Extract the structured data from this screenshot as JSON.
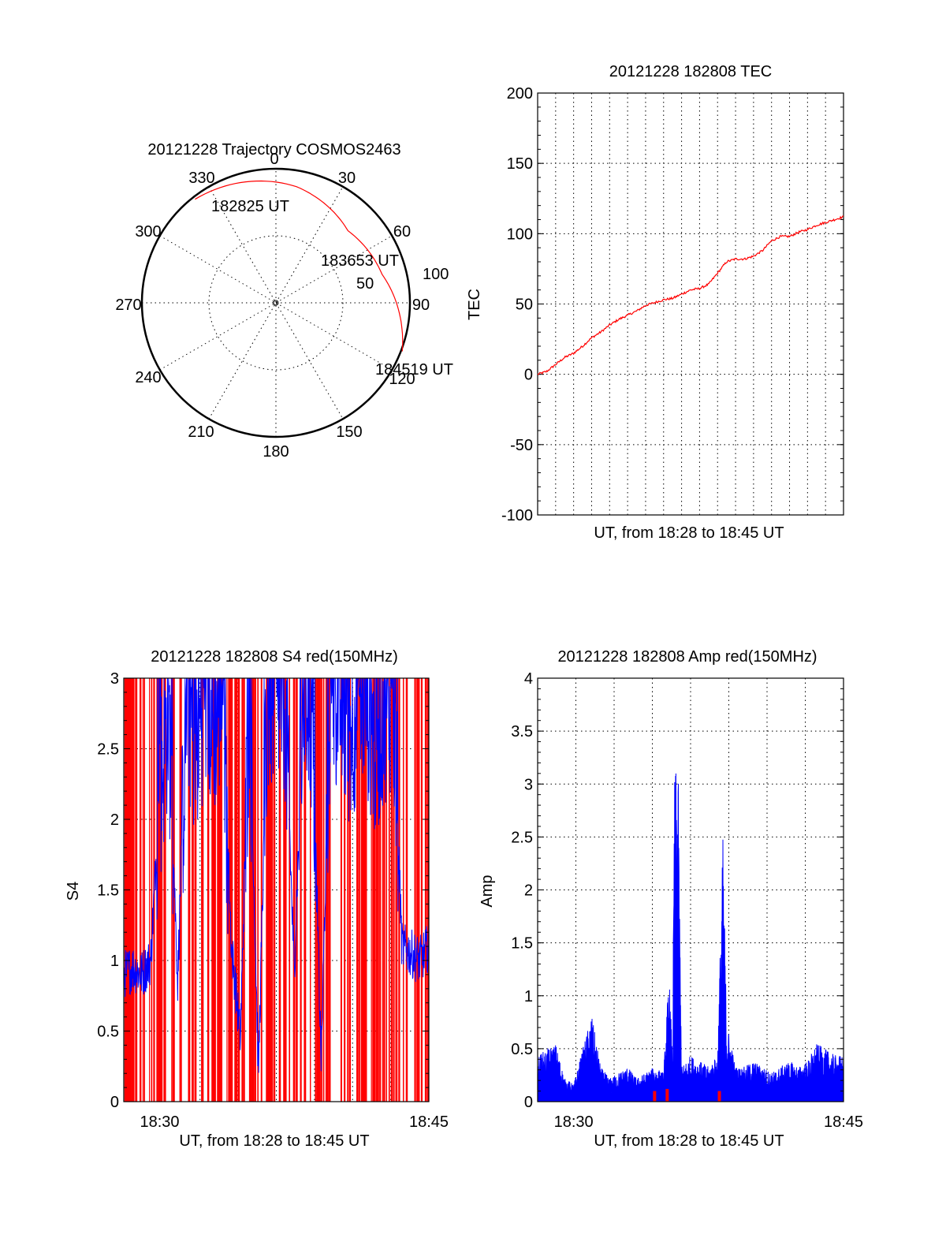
{
  "colors": {
    "red": "#ff0000",
    "blue": "#0000ff",
    "axis": "#000000"
  },
  "chart_data": [
    {
      "type": "polar",
      "title": "20121228 Trajectory COSMOS2463",
      "azimuth_labels": [
        "0",
        "30",
        "60",
        "90",
        "120",
        "150",
        "180",
        "210",
        "240",
        "270",
        "300",
        "330"
      ],
      "elevation_ring_labels": [
        "50",
        "100"
      ],
      "elevation_rings": [
        50,
        100
      ],
      "series": [
        {
          "color": "#ff0000",
          "points": [
            {
              "az": 322,
              "r": 98
            },
            {
              "az": 10,
              "r": 88
            },
            {
              "az": 45,
              "r": 76
            },
            {
              "az": 75,
              "r": 82
            },
            {
              "az": 111,
              "r": 101
            }
          ]
        }
      ],
      "annotations": [
        {
          "text": "182825 UT",
          "az": 322,
          "r": 98
        },
        {
          "text": "183653 UT",
          "az": 59,
          "r": 78
        },
        {
          "text": "184519 UT",
          "az": 111,
          "r": 101
        }
      ]
    },
    {
      "type": "line",
      "title": "20121228 182808 TEC",
      "xlabel": "UT, from 18:28 to 18:45 UT",
      "ylabel": "TEC",
      "xlim": [
        0,
        17
      ],
      "ylim": [
        -100,
        200
      ],
      "yticks": [
        "-100",
        "-50",
        "0",
        "50",
        "100",
        "150",
        "200"
      ],
      "grid": true,
      "series": [
        {
          "color": "#ff0000",
          "x": [
            0,
            0.5,
            1,
            1.5,
            2,
            2.5,
            3,
            3.5,
            4,
            4.5,
            5,
            5.5,
            6,
            6.5,
            7,
            7.5,
            8,
            8.5,
            9,
            9.5,
            10,
            10.5,
            11,
            11.5,
            12,
            12.5,
            13,
            13.5,
            14,
            14.5,
            15,
            15.5,
            16,
            16.5,
            17
          ],
          "y": [
            0,
            2,
            7,
            12,
            15,
            20,
            26,
            30,
            35,
            39,
            42,
            45,
            49,
            51,
            53,
            54,
            57,
            60,
            61,
            64,
            72,
            80,
            82,
            82,
            84,
            88,
            95,
            98,
            98,
            101,
            103,
            106,
            108,
            110,
            112
          ]
        }
      ]
    },
    {
      "type": "line",
      "title": "20121228 182808 S4 red(150MHz)",
      "xlabel": "UT, from 18:28 to 18:45 UT",
      "ylabel": "S4",
      "xlim": [
        0,
        17
      ],
      "ylim": [
        0,
        3
      ],
      "yticks": [
        "0",
        "0.5",
        "1",
        "1.5",
        "2",
        "2.5",
        "3"
      ],
      "xticks": [
        {
          "label": "18:30",
          "x": 2
        },
        {
          "label": "18:45",
          "x": 17
        }
      ],
      "grid": true,
      "series": [
        {
          "color": "#ff0000",
          "note": "dense vertical spikes from 0 to 3 across the interval"
        },
        {
          "color": "#0000ff",
          "x": [
            0,
            0.5,
            1,
            1.5,
            2,
            2.5,
            3,
            3.5,
            4,
            4.5,
            5,
            5.5,
            6,
            6.5,
            7,
            7.5,
            8,
            8.5,
            9,
            9.5,
            10,
            10.5,
            11,
            11.5,
            12,
            12.5,
            13,
            13.5,
            14,
            14.5,
            15,
            15.5,
            16,
            16.5,
            17
          ],
          "y": [
            0.9,
            0.95,
            0.9,
            1.0,
            2.2,
            2.8,
            0.85,
            2.9,
            2.5,
            2.9,
            2.7,
            2.9,
            1.1,
            0.45,
            2.9,
            0.2,
            2.8,
            2.9,
            2.8,
            0.9,
            2.9,
            2.7,
            0.3,
            2.9,
            2.9,
            2.6,
            2.8,
            2.9,
            2.5,
            2.8,
            2.9,
            1.1,
            1.05,
            1.0,
            1.1
          ]
        }
      ]
    },
    {
      "type": "line",
      "title": "20121228 182808 Amp red(150MHz)",
      "xlabel": "UT, from 18:28 to 18:45 UT",
      "ylabel": "Amp",
      "xlim": [
        0,
        17
      ],
      "ylim": [
        0,
        4
      ],
      "yticks": [
        "0",
        "0.5",
        "1",
        "1.5",
        "2",
        "2.5",
        "3",
        "3.5",
        "4"
      ],
      "xticks": [
        {
          "label": "18:30",
          "x": 2
        },
        {
          "label": "18:45",
          "x": 17
        }
      ],
      "grid": true,
      "series": [
        {
          "color": "#0000ff",
          "x": [
            0,
            0.5,
            1,
            1.5,
            2,
            2.5,
            3,
            3.5,
            4,
            4.5,
            5,
            5.5,
            6,
            6.5,
            7,
            7.3,
            7.5,
            7.6,
            7.8,
            8,
            8.5,
            9,
            9.5,
            10,
            10.3,
            10.5,
            11,
            11.5,
            12,
            12.5,
            13,
            13.5,
            14,
            14.5,
            15,
            15.5,
            16,
            16.5,
            17
          ],
          "y": [
            0.4,
            0.45,
            0.5,
            0.2,
            0.15,
            0.45,
            0.75,
            0.3,
            0.2,
            0.25,
            0.3,
            0.2,
            0.25,
            0.3,
            0.25,
            1.1,
            0.4,
            2.8,
            3.0,
            0.3,
            0.4,
            0.35,
            0.3,
            0.4,
            2.3,
            0.7,
            0.3,
            0.3,
            0.35,
            0.3,
            0.25,
            0.3,
            0.35,
            0.3,
            0.35,
            0.5,
            0.45,
            0.4,
            0.4
          ]
        },
        {
          "color": "#ff0000",
          "x": [
            6.5,
            7.2,
            10.1
          ],
          "y": [
            0.1,
            0.12,
            0.1
          ]
        }
      ]
    }
  ]
}
